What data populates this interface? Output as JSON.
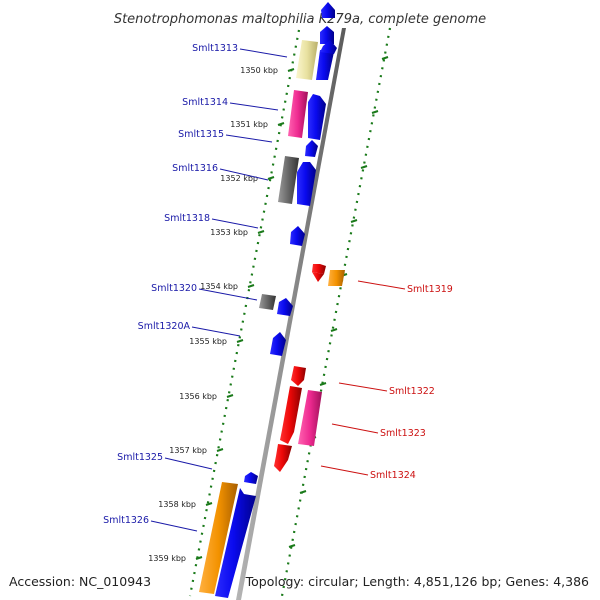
{
  "title": "Stenotrophomonas maltophilia K279a, complete genome",
  "footer": {
    "accession": "Accession: NC_010943",
    "summary": "Topology: circular; Length: 4,851,126 bp; Genes: 4,386"
  },
  "ticks": [
    "1350 kbp",
    "1351 kbp",
    "1352 kbp",
    "1353 kbp",
    "1354 kbp",
    "1355 kbp",
    "1356 kbp",
    "1357 kbp",
    "1358 kbp",
    "1359 kbp"
  ],
  "labels": {
    "left": [
      "Smlt1313",
      "Smlt1314",
      "Smlt1315",
      "Smlt1316",
      "Smlt1318",
      "Smlt1320",
      "Smlt1320A",
      "Smlt1325",
      "Smlt1326"
    ],
    "right": [
      "Smlt1319",
      "Smlt1322",
      "Smlt1323",
      "Smlt1324"
    ]
  },
  "colors": {
    "forward_label": "#1a1aa8",
    "reverse_label": "#cc1111",
    "cds_blue": "#0a0aee",
    "cds_red": "#ee0808",
    "cds_orange": "#f39200",
    "cds_pink": "#ee2a90",
    "cds_yellow": "#e8e1a0",
    "cds_gray": "#666666",
    "backbone": "#8c8c8c",
    "ruler": "#1a7a1a"
  }
}
